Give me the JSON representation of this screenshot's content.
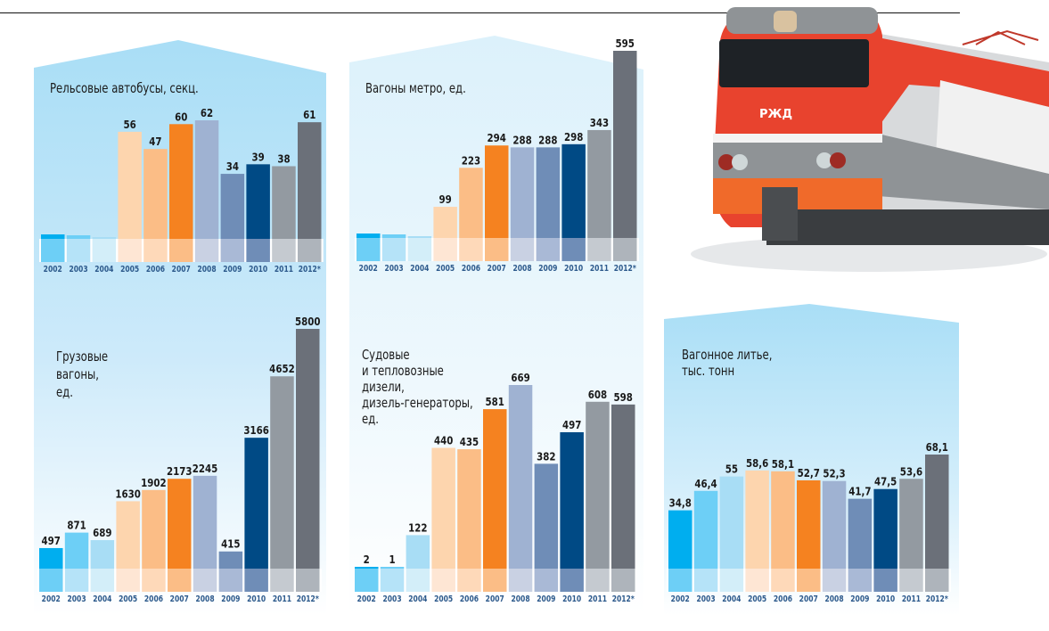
{
  "colors": {
    "years_bar": [
      "#00aeef",
      "#6dcff6",
      "#a8ddf5",
      "#fdd5ae",
      "#fbbd86",
      "#f58220",
      "#9fb2d2",
      "#6f8db7",
      "#004a85",
      "#939aa1",
      "#6b7079"
    ],
    "years_band": [
      "#6dcff6",
      "#b5e3f8",
      "#d3eef9",
      "#fee6d4",
      "#fed9b9",
      "#fbbd86",
      "#c9d1e3",
      "#a9b9d6",
      "#6f8db7",
      "#c5cad0",
      "#aeb4bb"
    ],
    "panel_bg_top": "#a8ddf5",
    "panel_bg_bottom": "#ffffff",
    "year_label": "#2d5a8c",
    "value_label": "#1a1a1a"
  },
  "chart_data": [
    {
      "type": "bar",
      "id": "rail-buses",
      "title_lines": [
        "Рельсовые автобусы, секц."
      ],
      "categories": [
        "2002",
        "2003",
        "2004",
        "2005",
        "2006",
        "2007",
        "2008",
        "2009",
        "2010",
        "2011",
        "2012*"
      ],
      "values": [
        null,
        null,
        null,
        56,
        47,
        60,
        62,
        34,
        39,
        38,
        61
      ],
      "value_labels": [
        "",
        "",
        "",
        "56",
        "47",
        "60",
        "62",
        "34",
        "39",
        "38",
        "61"
      ],
      "stub_bars_unlabeled": [
        "2002",
        "2003",
        "2004"
      ],
      "xlabel": "",
      "ylabel": "",
      "ylim": [
        0,
        62
      ]
    },
    {
      "type": "bar",
      "id": "metro-cars",
      "title_lines": [
        "Вагоны метро, ед."
      ],
      "categories": [
        "2002",
        "2003",
        "2004",
        "2005",
        "2006",
        "2007",
        "2008",
        "2009",
        "2010",
        "2011",
        "2012*"
      ],
      "values": [
        null,
        null,
        null,
        99,
        223,
        294,
        288,
        288,
        298,
        343,
        595
      ],
      "value_labels": [
        "",
        "",
        "",
        "99",
        "223",
        "294",
        "288",
        "288",
        "298",
        "343",
        "595"
      ],
      "stub_bars_unlabeled": [
        "2002",
        "2003",
        "2004"
      ],
      "xlabel": "",
      "ylabel": "",
      "ylim": [
        0,
        595
      ]
    },
    {
      "type": "bar",
      "id": "freight-cars",
      "title_lines": [
        "Грузовые",
        "вагоны,",
        "ед."
      ],
      "categories": [
        "2002",
        "2003",
        "2004",
        "2005",
        "2006",
        "2007",
        "2008",
        "2009",
        "2010",
        "2011",
        "2012*"
      ],
      "values": [
        497,
        871,
        689,
        1630,
        1902,
        2173,
        2245,
        415,
        3166,
        4652,
        5800
      ],
      "value_labels": [
        "497",
        "871",
        "689",
        "1630",
        "1902",
        "2173",
        "2245",
        "415",
        "3166",
        "4652",
        "5800"
      ],
      "xlabel": "",
      "ylabel": "",
      "ylim": [
        0,
        5800
      ]
    },
    {
      "type": "bar",
      "id": "diesels",
      "title_lines": [
        "Судовые",
        "и тепловозные",
        "дизели,",
        "дизель-генераторы,",
        "ед."
      ],
      "categories": [
        "2002",
        "2003",
        "2004",
        "2005",
        "2006",
        "2007",
        "2008",
        "2009",
        "2010",
        "2011",
        "2012*"
      ],
      "values": [
        2,
        1,
        122,
        440,
        435,
        581,
        669,
        382,
        497,
        608,
        598
      ],
      "value_labels": [
        "2",
        "1",
        "122",
        "440",
        "435",
        "581",
        "669",
        "382",
        "497",
        "608",
        "598"
      ],
      "xlabel": "",
      "ylabel": "",
      "ylim": [
        0,
        669
      ]
    },
    {
      "type": "bar",
      "id": "car-casting",
      "title_lines": [
        "Вагонное литье,",
        "тыс. тонн"
      ],
      "categories": [
        "2002",
        "2003",
        "2004",
        "2005",
        "2006",
        "2007",
        "2008",
        "2009",
        "2010",
        "2011",
        "2012*"
      ],
      "values": [
        34.8,
        46.4,
        55,
        58.6,
        58.1,
        52.7,
        52.3,
        41.7,
        47.5,
        53.6,
        68.1
      ],
      "value_labels": [
        "34,8",
        "46,4",
        "55",
        "58,6",
        "58,1",
        "52,7",
        "52,3",
        "41,7",
        "47,5",
        "53,6",
        "68,1"
      ],
      "xlabel": "",
      "ylabel": "",
      "ylim": [
        0,
        68.1
      ]
    }
  ],
  "photo": {
    "subject": "red electric locomotive",
    "logo_text": "РЖД"
  }
}
